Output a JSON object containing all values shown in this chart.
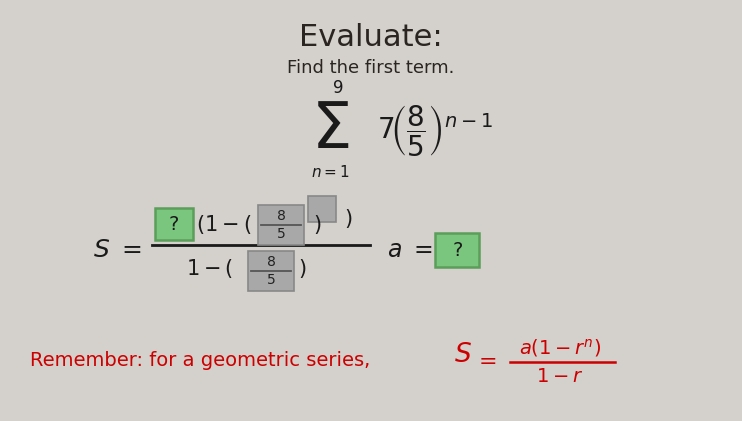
{
  "bg_color": "#d4d0cb",
  "title": "Evaluate:",
  "subtitle": "Find the first term.",
  "title_color": "#2a2520",
  "subtitle_color": "#2a2520",
  "dark_color": "#1a1a1a",
  "green_box_color": "#7bc67e",
  "green_edge_color": "#5a9e5a",
  "gray_box_color": "#a8a8a8",
  "gray_edge_color": "#888888",
  "remember_text_color": "#cc0000",
  "title_fontsize": 22,
  "subtitle_fontsize": 13,
  "figwidth": 7.42,
  "figheight": 4.21,
  "dpi": 100
}
